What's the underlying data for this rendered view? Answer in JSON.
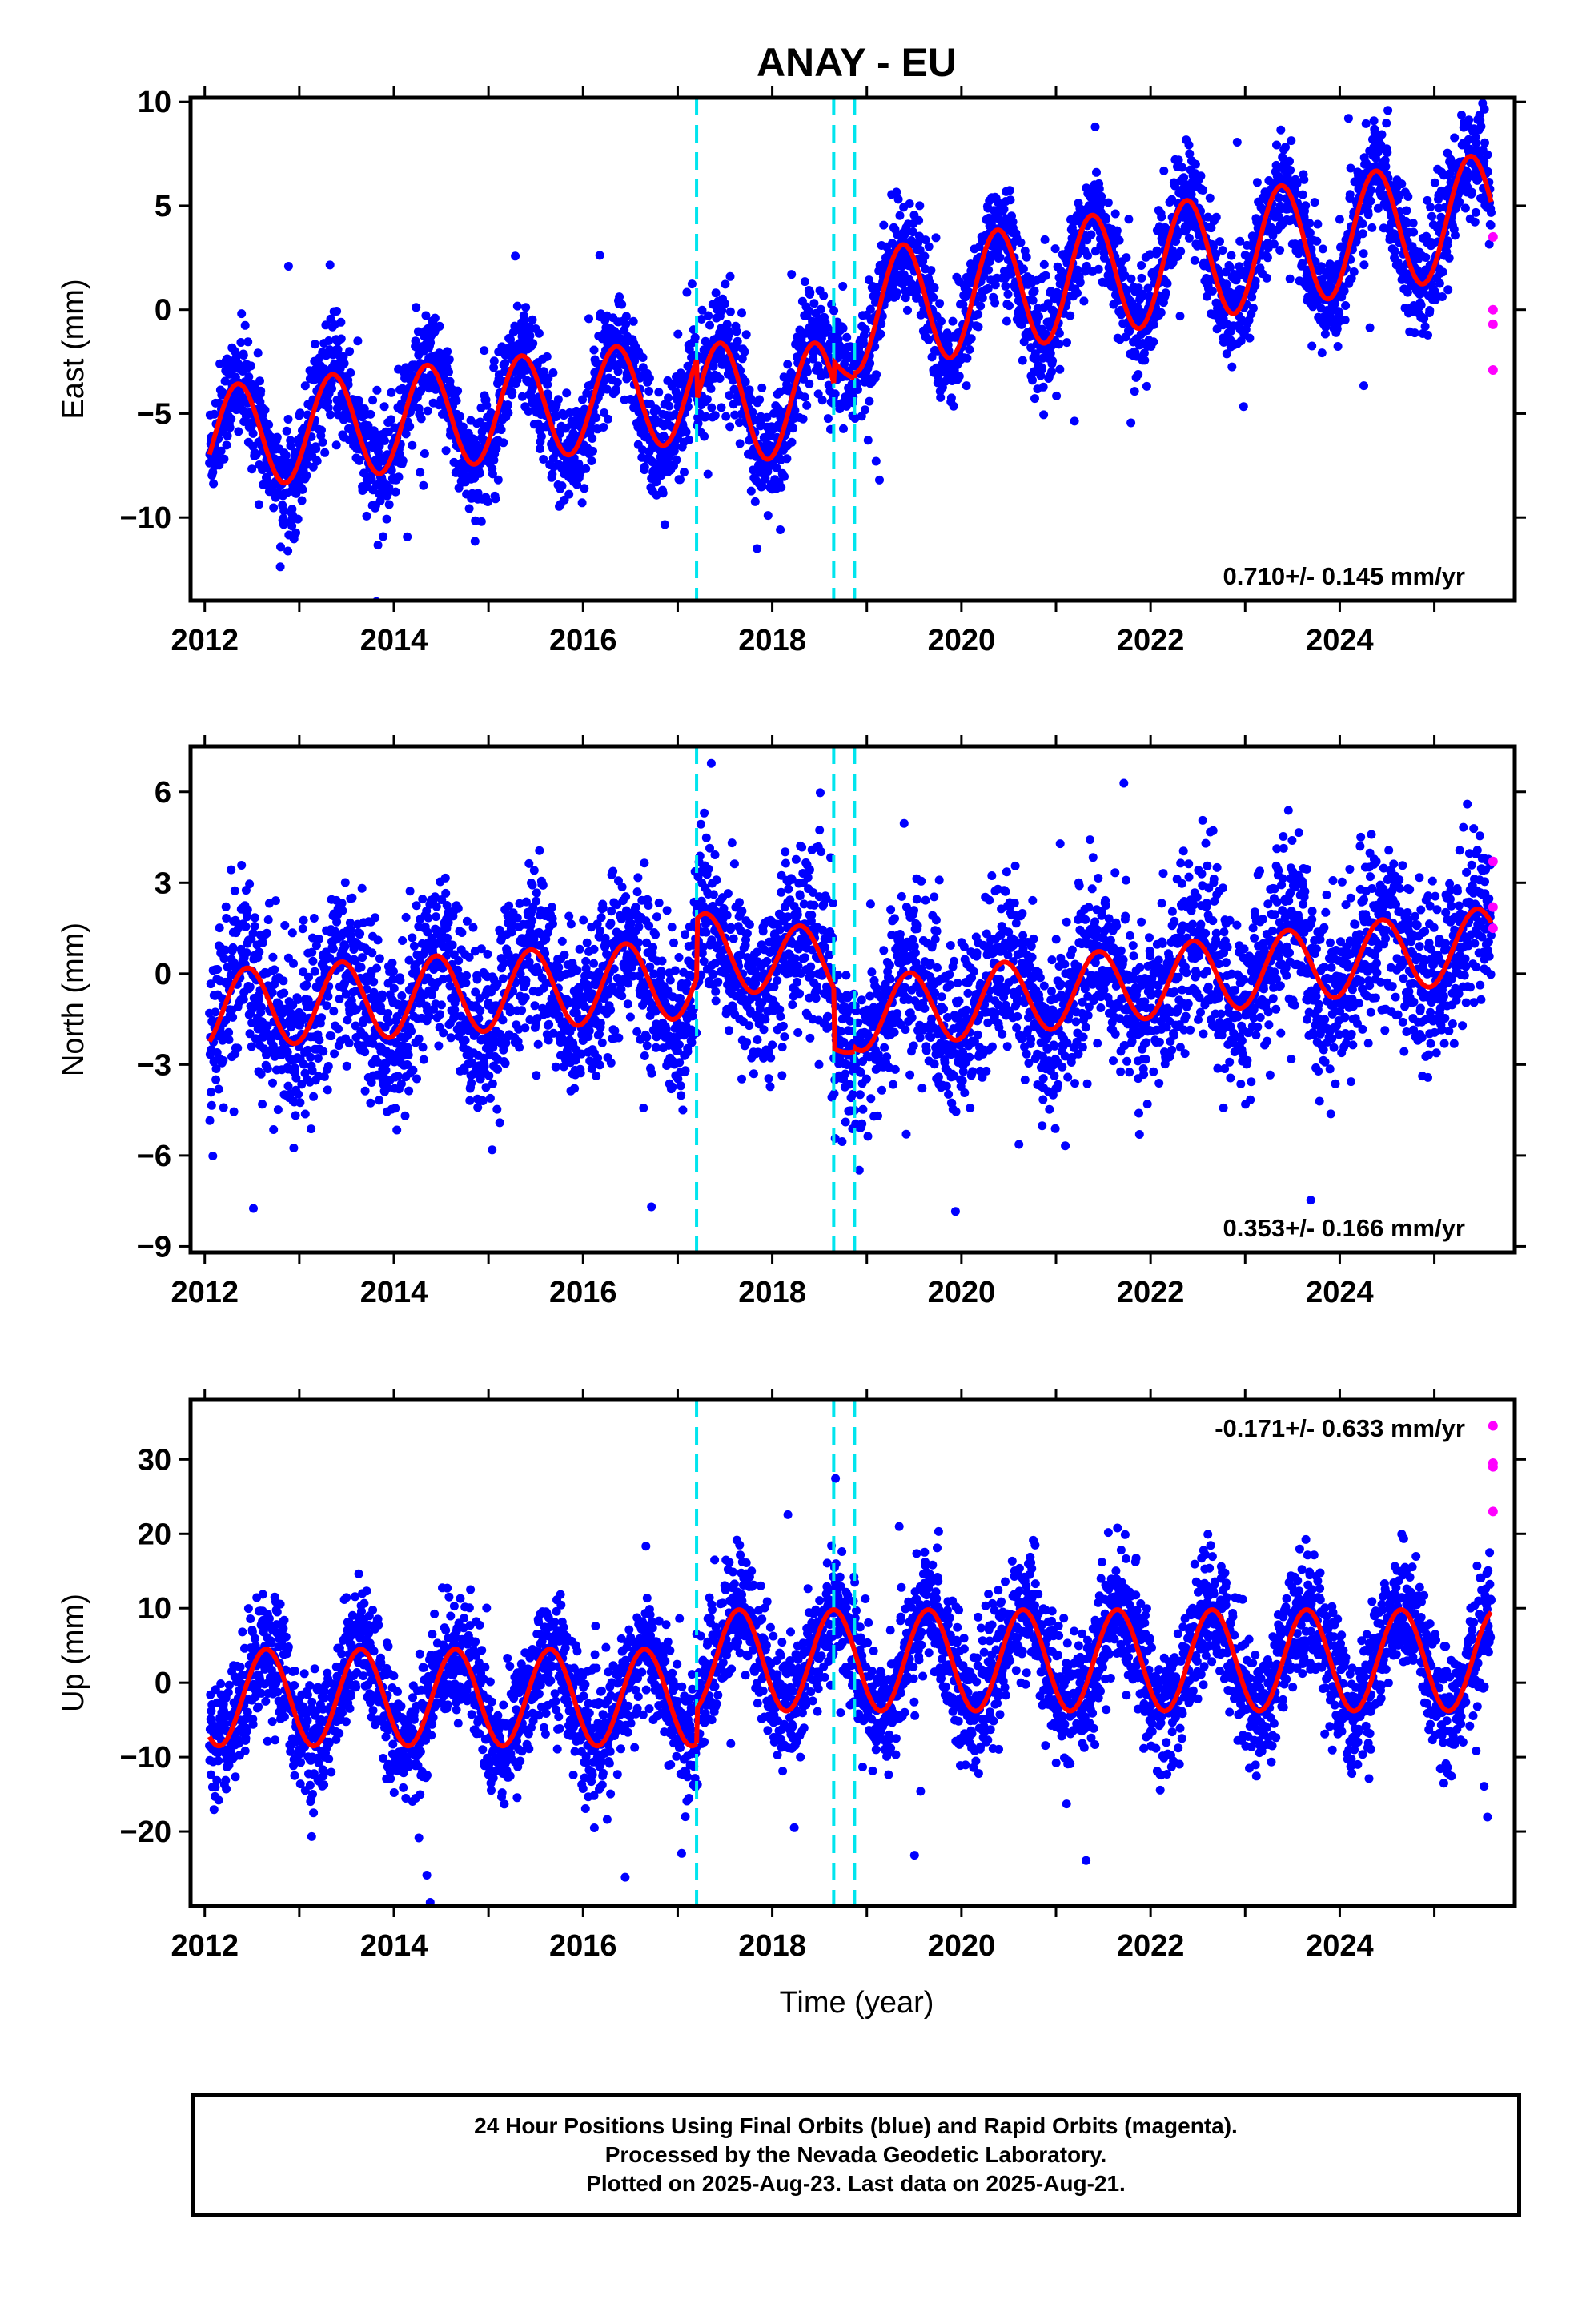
{
  "title": "ANAY - EU",
  "xlabel": "Time (year)",
  "footer": {
    "line1": "24 Hour Positions Using Final Orbits (blue) and Rapid Orbits (magenta).",
    "line2": "Processed by the Nevada Geodetic Laboratory.",
    "line3": "Plotted on 2025-Aug-23. Last data on 2025-Aug-21."
  },
  "colors": {
    "final": "#0000ff",
    "rapid": "#ff00ff",
    "model": "#ff0000",
    "breaks": "#00e5ee"
  },
  "chart_data": [
    {
      "type": "scatter",
      "component": "east",
      "ylabel": "East (mm)",
      "rate_text": "0.710+/- 0.145 mm/yr",
      "xlim": [
        2011.85,
        2025.85
      ],
      "ylim": [
        -14,
        10.2
      ],
      "xticks": [
        2012,
        2014,
        2016,
        2018,
        2020,
        2022,
        2024
      ],
      "yticks": [
        -10,
        -5,
        0,
        5,
        10
      ],
      "breaks": [
        2017.2,
        2018.65,
        2018.87
      ],
      "model": {
        "segments": [
          {
            "start": 2012.05,
            "end": 2017.2,
            "offset": -3.3,
            "rate": 0.45,
            "amplitude": 2.5,
            "peak": 0.35
          },
          {
            "start": 2017.2,
            "end": 2018.65,
            "offset": -4.4,
            "rate": 0.0,
            "amplitude": 2.8,
            "peak": 0.45
          },
          {
            "start": 2018.65,
            "end": 2018.87,
            "offset": -2.5,
            "rate": 0.0,
            "amplitude": 0.8,
            "peak": 0.4
          },
          {
            "start": 2018.87,
            "end": 2025.6,
            "offset": -0.4,
            "rate": 0.71,
            "amplitude": 2.9,
            "peak": 0.38
          }
        ]
      },
      "final_points": {
        "count": 4200,
        "start": 2012.05,
        "end": 2025.6,
        "scatter_mm": 1.3
      },
      "rapid_points": [
        {
          "x": 2025.62,
          "y": 3.5
        },
        {
          "x": 2025.62,
          "y": 0.0
        },
        {
          "x": 2025.62,
          "y": -0.7
        },
        {
          "x": 2025.62,
          "y": -2.9
        }
      ]
    },
    {
      "type": "scatter",
      "component": "north",
      "ylabel": "North (mm)",
      "rate_text": "0.353+/- 0.166 mm/yr",
      "xlim": [
        2011.85,
        2025.85
      ],
      "ylim": [
        -9.2,
        7.5
      ],
      "xticks": [
        2012,
        2014,
        2016,
        2018,
        2020,
        2022,
        2024
      ],
      "yticks": [
        -9,
        -6,
        -3,
        0,
        3,
        6
      ],
      "breaks": [
        2017.2,
        2018.65,
        2018.87
      ],
      "model": {
        "segments": [
          {
            "start": 2012.05,
            "end": 2017.2,
            "offset": 0.1,
            "rate": 0.2,
            "amplitude": 1.3,
            "peak": 0.45
          },
          {
            "start": 2017.2,
            "end": 2018.65,
            "offset": 0.3,
            "rate": -0.4,
            "amplitude": 1.2,
            "peak": 0.3
          },
          {
            "start": 2018.65,
            "end": 2018.87,
            "offset": -2.3,
            "rate": 0.0,
            "amplitude": 0.3,
            "peak": 0.3
          },
          {
            "start": 2018.87,
            "end": 2025.6,
            "offset": -1.5,
            "rate": 0.35,
            "amplitude": 1.2,
            "peak": 0.45
          }
        ]
      },
      "final_points": {
        "count": 4200,
        "start": 2012.05,
        "end": 2025.6,
        "scatter_mm": 1.4
      },
      "rapid_points": [
        {
          "x": 2025.62,
          "y": 3.7
        },
        {
          "x": 2025.62,
          "y": 2.2
        },
        {
          "x": 2025.62,
          "y": 1.5
        }
      ]
    },
    {
      "type": "scatter",
      "component": "up",
      "ylabel": "Up (mm)",
      "rate_text": "-0.171+/- 0.633 mm/yr",
      "xlim": [
        2011.85,
        2025.85
      ],
      "ylim": [
        -30,
        38
      ],
      "xticks": [
        2012,
        2014,
        2016,
        2018,
        2020,
        2022,
        2024
      ],
      "yticks": [
        -20,
        -10,
        0,
        10,
        20,
        30
      ],
      "breaks": [
        2017.2,
        2018.65,
        2018.87
      ],
      "model": {
        "segments": [
          {
            "start": 2012.05,
            "end": 2017.2,
            "offset": -2.0,
            "rate": 0.0,
            "amplitude": 6.5,
            "peak": 0.65
          },
          {
            "start": 2017.2,
            "end": 2025.6,
            "offset": 3.0,
            "rate": 0.0,
            "amplitude": 6.8,
            "peak": 0.65
          }
        ]
      },
      "final_points": {
        "count": 4200,
        "start": 2012.05,
        "end": 2025.6,
        "scatter_mm": 4.2
      },
      "rapid_points": [
        {
          "x": 2025.62,
          "y": 34.5
        },
        {
          "x": 2025.62,
          "y": 29.5
        },
        {
          "x": 2025.62,
          "y": 29.0
        },
        {
          "x": 2025.62,
          "y": 23.0
        }
      ]
    }
  ]
}
